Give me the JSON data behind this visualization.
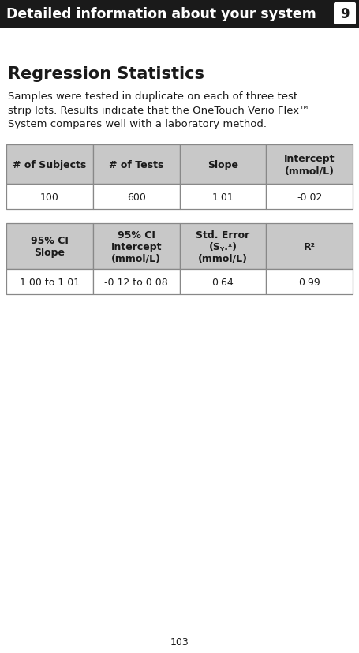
{
  "page_number": "103",
  "header_text": "Detailed information about your system",
  "header_num": "9",
  "section_title": "Regression Statistics",
  "body_text": "Samples were tested in duplicate on each of three test\nstrip lots. Results indicate that the OneTouch Verio Flex™\nSystem compares well with a laboratory method.",
  "table1_headers": [
    "# of Subjects",
    "# of Tests",
    "Slope",
    "Intercept\n(mmol/L)"
  ],
  "table1_data": [
    "100",
    "600",
    "1.01",
    "-0.02"
  ],
  "table2_headers": [
    "95% CI\nSlope",
    "95% CI\nIntercept\n(mmol/L)",
    "Std. Error\n(Sᵧ.ˣ)\n(mmol/L)",
    "R²"
  ],
  "table2_data": [
    "1.00 to 1.01",
    "-0.12 to 0.08",
    "0.64",
    "0.99"
  ],
  "header_bg": "#1a1a1a",
  "header_fg": "#ffffff",
  "table_header_bg": "#c8c8c8",
  "table_border": "#888888",
  "body_bg": "#ffffff",
  "body_fg": "#1a1a1a",
  "font_size_header": 12.5,
  "font_size_section": 15,
  "font_size_body": 9.5,
  "font_size_table": 9,
  "font_size_page": 9
}
